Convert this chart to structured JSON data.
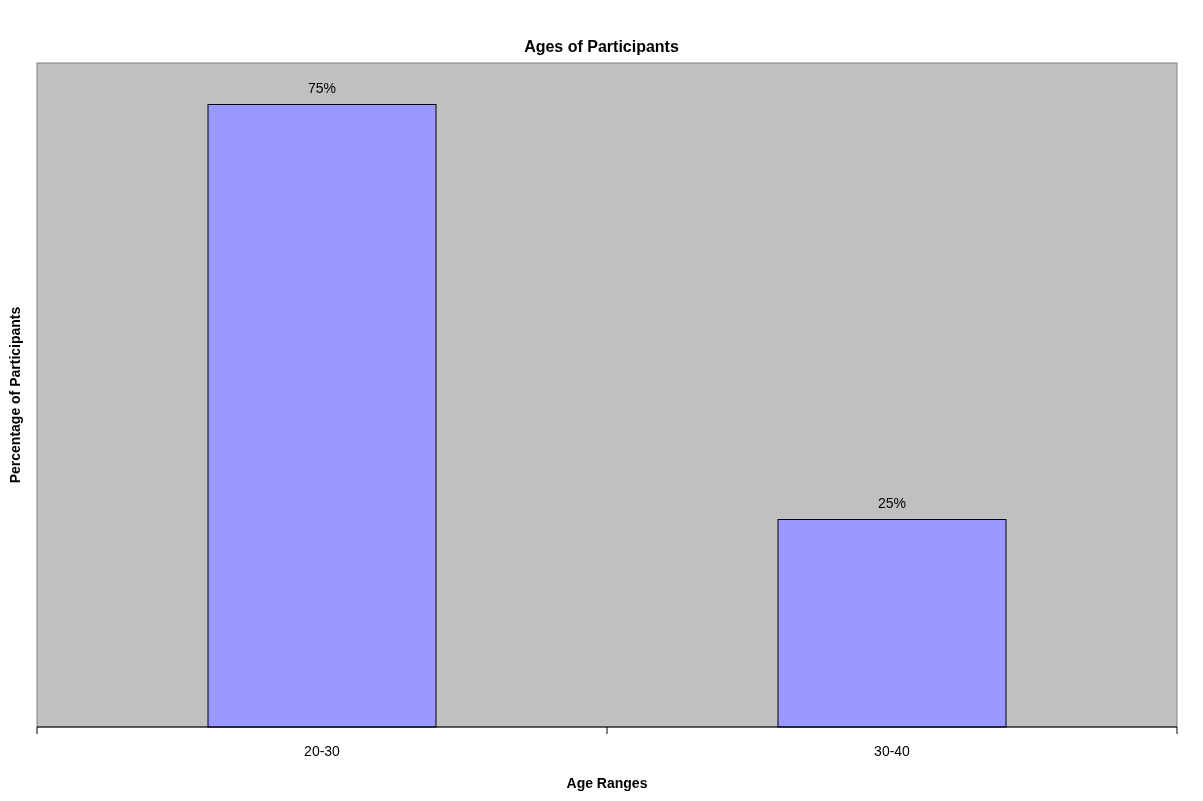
{
  "chart_data": {
    "type": "bar",
    "title": "Ages of Participants",
    "xlabel": "Age Ranges",
    "ylabel": "Percentage of Participants",
    "categories": [
      "20-30",
      "30-40"
    ],
    "values": [
      75,
      25
    ],
    "value_labels": [
      "75%",
      "25%"
    ],
    "color": "#9999ff",
    "ylim": [
      0,
      80
    ],
    "tick_labels": "x",
    "grid": false
  }
}
